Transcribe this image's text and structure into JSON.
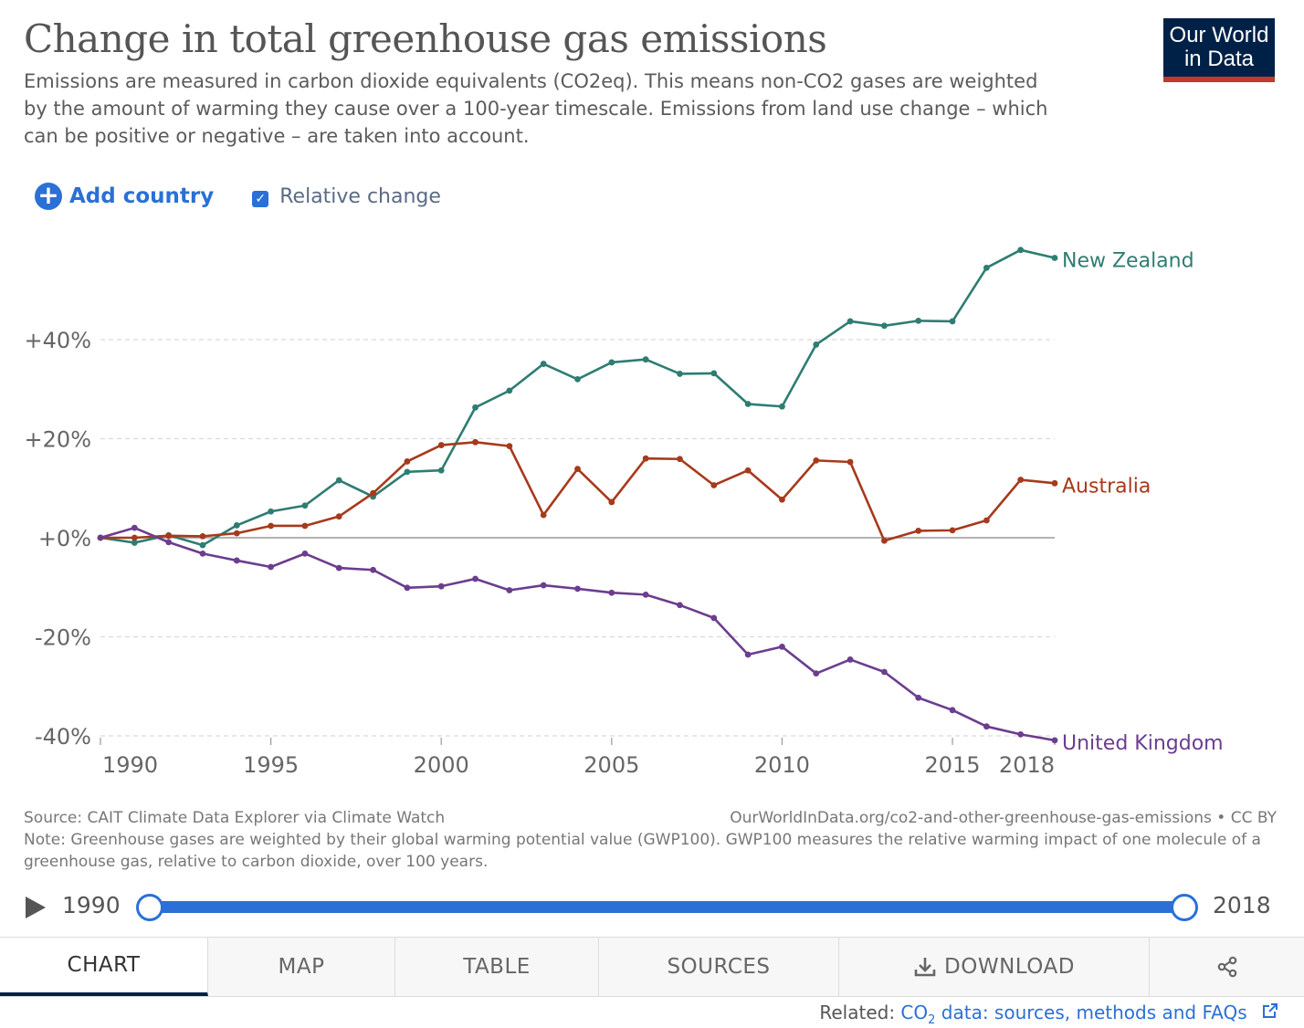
{
  "header": {
    "title": "Change in total greenhouse gas emissions",
    "subtitle": "Emissions are measured in carbon dioxide equivalents (CO2eq). This means non-CO2 gases are weighted by the amount of warming they cause over a 100-year timescale. Emissions from land use change – which can be positive or negative – are taken into account.",
    "logo_line1": "Our World",
    "logo_line2": "in Data"
  },
  "controls": {
    "add_label": "Add country",
    "relative_label": "Relative change",
    "relative_checked": true
  },
  "colors": {
    "new_zealand": "#2e7d72",
    "australia": "#a63a1c",
    "united_kingdom": "#6b3d8f",
    "accent": "#2a70d6",
    "logo_bg": "#002147",
    "logo_bar": "#c0392b"
  },
  "chart_data": {
    "type": "line",
    "x": [
      1990,
      1991,
      1992,
      1993,
      1994,
      1995,
      1996,
      1997,
      1998,
      1999,
      2000,
      2001,
      2002,
      2003,
      2004,
      2005,
      2006,
      2007,
      2008,
      2009,
      2010,
      2011,
      2012,
      2013,
      2014,
      2015,
      2016,
      2017,
      2018
    ],
    "series": [
      {
        "name": "New Zealand",
        "color": "#2e7d72",
        "values": [
          0,
          -1,
          0.5,
          -1.5,
          2.5,
          5.3,
          6.5,
          11.6,
          8.3,
          13.3,
          13.6,
          26.3,
          29.7,
          35.1,
          32,
          35.4,
          36,
          33.1,
          33.2,
          27,
          26.5,
          39,
          43.7,
          42.8,
          43.8,
          43.7,
          54.5,
          58.1,
          56.5
        ]
      },
      {
        "name": "Australia",
        "color": "#a63a1c",
        "values": [
          0,
          0,
          0.4,
          0.3,
          0.9,
          2.4,
          2.4,
          4.3,
          9,
          15.4,
          18.7,
          19.3,
          18.5,
          4.6,
          13.9,
          7.2,
          16,
          15.9,
          10.6,
          13.6,
          7.7,
          15.6,
          15.3,
          -0.6,
          1.4,
          1.5,
          3.5,
          11.7,
          11
        ]
      },
      {
        "name": "United Kingdom",
        "color": "#6b3d8f",
        "values": [
          0,
          2,
          -0.9,
          -3.2,
          -4.6,
          -5.9,
          -3.2,
          -6.1,
          -6.5,
          -10.1,
          -9.8,
          -8.3,
          -10.6,
          -9.6,
          -10.3,
          -11.1,
          -11.5,
          -13.6,
          -16.2,
          -23.6,
          -22,
          -27.4,
          -24.6,
          -27.1,
          -32.3,
          -34.8,
          -38.1,
          -39.7,
          -40.9
        ]
      }
    ],
    "yticks": [
      "+40%",
      "+20%",
      "+0%",
      "-20%",
      "-40%"
    ],
    "ytick_values": [
      40,
      20,
      0,
      -20,
      -40
    ],
    "xticks": [
      "1990",
      "1995",
      "2000",
      "2005",
      "2010",
      "2015",
      "2018"
    ],
    "xtick_values": [
      1990,
      1995,
      2000,
      2005,
      2010,
      2015,
      2018
    ],
    "xlim": [
      1990,
      2018
    ],
    "ylim": [
      -41,
      60
    ],
    "grid": "horizontal dashed",
    "legend": "inline labels at line ends"
  },
  "footer": {
    "source": "Source: CAIT Climate Data Explorer via Climate Watch",
    "url_license": "OurWorldInData.org/co2-and-other-greenhouse-gas-emissions • CC BY",
    "note": "Note: Greenhouse gases are weighted by their global warming potential value (GWP100). GWP100 measures the relative warming impact of one molecule of a greenhouse gas, relative to carbon dioxide, over 100 years."
  },
  "timeline": {
    "start": "1990",
    "end": "2018"
  },
  "tabs": [
    "CHART",
    "MAP",
    "TABLE",
    "SOURCES",
    "DOWNLOAD"
  ],
  "share_icon": "share-icon",
  "download_icon": "download-icon",
  "related": {
    "label": "Related:",
    "link_prefix": "CO",
    "link_sub": "2",
    "link_suffix": " data: sources, methods and FAQs",
    "link_icon": "external-link-icon"
  }
}
